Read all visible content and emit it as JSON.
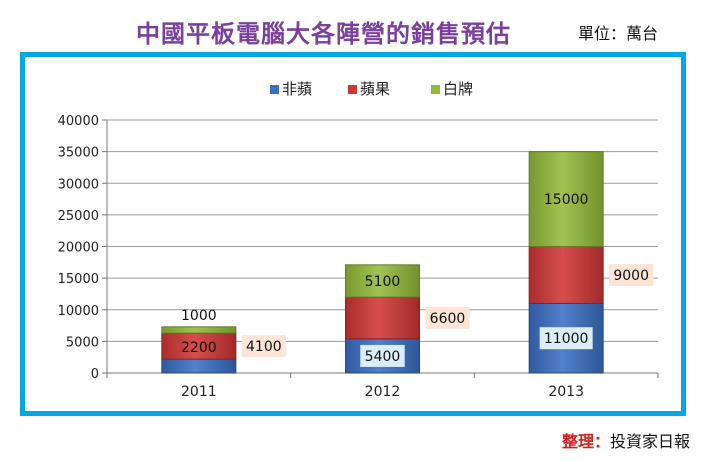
{
  "title": "中國平板電腦大各陣營的銷售預估",
  "unit_label": "單位：萬台",
  "source": {
    "label": "整理：",
    "text": "投資家日報"
  },
  "colors": {
    "frame": "#00a8e8",
    "title": "#7b3fa0",
    "series": [
      "#3a6fc4",
      "#d03636",
      "#93bb3a"
    ],
    "label_box_light": "#dbeef7",
    "label_box_peach": "#fce4d6"
  },
  "chart_data": {
    "type": "bar",
    "stacked": true,
    "categories": [
      "2011",
      "2012",
      "2013"
    ],
    "series": [
      {
        "name": "非蘋",
        "values": [
          2200,
          5400,
          11000
        ]
      },
      {
        "name": "蘋果",
        "values": [
          4100,
          6600,
          9000
        ]
      },
      {
        "name": "白牌",
        "values": [
          1000,
          5100,
          15000
        ]
      }
    ],
    "ylim": [
      0,
      40000
    ],
    "yticks": [
      "0",
      "5000",
      "10000",
      "15000",
      "20000",
      "25000",
      "30000",
      "35000",
      "40000"
    ],
    "legend_position": "top",
    "grid": true
  }
}
